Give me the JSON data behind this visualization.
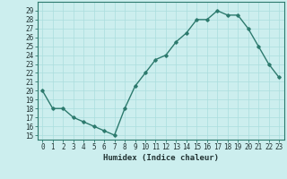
{
  "x": [
    0,
    1,
    2,
    3,
    4,
    5,
    6,
    7,
    8,
    9,
    10,
    11,
    12,
    13,
    14,
    15,
    16,
    17,
    18,
    19,
    20,
    21,
    22,
    23
  ],
  "y": [
    20,
    18,
    18,
    17,
    16.5,
    16,
    15.5,
    15,
    18,
    20.5,
    22,
    23.5,
    24,
    25.5,
    26.5,
    28,
    28,
    29,
    28.5,
    28.5,
    27,
    25,
    23,
    21.5
  ],
  "line_color": "#2d7a6e",
  "bg_color": "#cceeee",
  "grid_color": "#aadddd",
  "plot_bg": "#cceeff",
  "xlabel": "Humidex (Indice chaleur)",
  "xlim": [
    -0.5,
    23.5
  ],
  "ylim": [
    14.5,
    30.0
  ],
  "yticks": [
    15,
    16,
    17,
    18,
    19,
    20,
    21,
    22,
    23,
    24,
    25,
    26,
    27,
    28,
    29
  ],
  "xticks": [
    0,
    1,
    2,
    3,
    4,
    5,
    6,
    7,
    8,
    9,
    10,
    11,
    12,
    13,
    14,
    15,
    16,
    17,
    18,
    19,
    20,
    21,
    22,
    23
  ],
  "xtick_labels": [
    "0",
    "1",
    "2",
    "3",
    "4",
    "5",
    "6",
    "7",
    "8",
    "9",
    "10",
    "11",
    "12",
    "13",
    "14",
    "15",
    "16",
    "17",
    "18",
    "19",
    "20",
    "21",
    "22",
    "23"
  ],
  "marker": "D",
  "marker_size": 1.8,
  "line_width": 1.0,
  "font_color": "#223333",
  "tick_fontsize": 5.5,
  "xlabel_fontsize": 6.5
}
